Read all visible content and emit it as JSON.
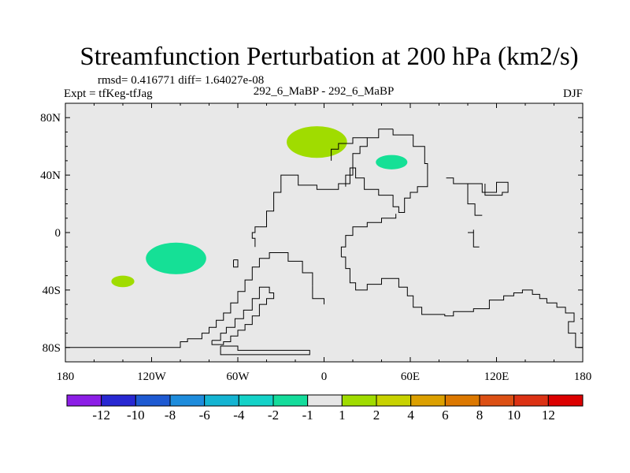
{
  "chart_data": {
    "type": "contour-map",
    "title": "Streamfunction Perturbation at 200 hPa (km2/s)",
    "stats_line": "rmsd= 0.416771 diff= 1.64027e-08",
    "left_label": "Expt = tfKeg-tfJag",
    "center_label": "292_6_MaBP - 292_6_MaBP",
    "right_label": "DJF",
    "xlim": [
      -180,
      180
    ],
    "ylim": [
      -90,
      90
    ],
    "x_ticks": [
      {
        "value": -180,
        "label": "180"
      },
      {
        "value": -120,
        "label": "120W"
      },
      {
        "value": -60,
        "label": "60W"
      },
      {
        "value": 0,
        "label": "0"
      },
      {
        "value": 60,
        "label": "60E"
      },
      {
        "value": 120,
        "label": "120E"
      },
      {
        "value": 180,
        "label": "180"
      }
    ],
    "y_ticks": [
      {
        "value": 80,
        "label": "80N"
      },
      {
        "value": 40,
        "label": "40N"
      },
      {
        "value": 0,
        "label": "0"
      },
      {
        "value": -40,
        "label": "40S"
      },
      {
        "value": -80,
        "label": "80S"
      }
    ],
    "background_color": "#e8e8e8",
    "contour_regions": [
      {
        "level": 2,
        "color": "#a0dc00",
        "center": [
          -5,
          63
        ],
        "radius": [
          21,
          11
        ]
      },
      {
        "level": -1,
        "color": "#15e096",
        "center": [
          47,
          49
        ],
        "radius": [
          11,
          5
        ]
      },
      {
        "level": -1,
        "color": "#15e096",
        "center": [
          -103,
          -18
        ],
        "radius": [
          21,
          11
        ]
      },
      {
        "level": 2,
        "color": "#a0dc00",
        "center": [
          -140,
          -34
        ],
        "radius": [
          8,
          4
        ]
      }
    ],
    "colorbar": {
      "labels": [
        "-12",
        "-10",
        "-8",
        "-6",
        "-4",
        "-2",
        "-1",
        "1",
        "2",
        "4",
        "6",
        "8",
        "10",
        "12"
      ],
      "colors": [
        "#8c1ee6",
        "#2828d2",
        "#1e5ad2",
        "#1e8cdc",
        "#14b4d2",
        "#14d2c8",
        "#14dc9b",
        "#e6e6e6",
        "#a0dc00",
        "#c8d200",
        "#dca000",
        "#dc7800",
        "#dc5014",
        "#dc3214",
        "#dc0000"
      ]
    },
    "coastlines": [
      [
        [
          -180,
          -80
        ],
        [
          -100,
          -80
        ],
        [
          -100,
          -76
        ],
        [
          -95,
          -76
        ],
        [
          -95,
          -74
        ],
        [
          -85,
          -74
        ],
        [
          -85,
          -70
        ],
        [
          -80,
          -70
        ],
        [
          -80,
          -66
        ],
        [
          -75,
          -66
        ],
        [
          -75,
          -61
        ],
        [
          -70,
          -61
        ],
        [
          -70,
          -56
        ],
        [
          -65,
          -56
        ],
        [
          -65,
          -49
        ],
        [
          -60,
          -49
        ],
        [
          -60,
          -41
        ],
        [
          -55,
          -41
        ],
        [
          -55,
          -33
        ],
        [
          -50,
          -33
        ],
        [
          -50,
          -24
        ],
        [
          -45,
          -24
        ],
        [
          -45,
          -18
        ],
        [
          -38,
          -18
        ],
        [
          -38,
          -14
        ],
        [
          -25,
          -14
        ],
        [
          -25,
          -20
        ],
        [
          -15,
          -20
        ],
        [
          -15,
          -28
        ],
        [
          -8,
          -28
        ],
        [
          -8,
          -37
        ]
      ],
      [
        [
          -78,
          -75
        ],
        [
          -72,
          -75
        ],
        [
          -72,
          -70
        ],
        [
          -68,
          -70
        ],
        [
          -68,
          -66
        ],
        [
          -62,
          -66
        ],
        [
          -62,
          -60
        ],
        [
          -56,
          -60
        ],
        [
          -56,
          -54
        ],
        [
          -50,
          -54
        ],
        [
          -50,
          -46
        ],
        [
          -45,
          -46
        ],
        [
          -45,
          -38
        ],
        [
          -38,
          -38
        ],
        [
          -38,
          -42
        ],
        [
          -35,
          -42
        ],
        [
          -35,
          -46
        ],
        [
          -40,
          -46
        ],
        [
          -40,
          -50
        ],
        [
          -45,
          -50
        ],
        [
          -45,
          -58
        ],
        [
          -50,
          -58
        ],
        [
          -50,
          -64
        ],
        [
          -55,
          -64
        ],
        [
          -55,
          -68
        ],
        [
          -60,
          -68
        ],
        [
          -60,
          -72
        ],
        [
          -65,
          -72
        ],
        [
          -65,
          -76
        ],
        [
          -70,
          -76
        ],
        [
          -70,
          -78
        ],
        [
          -76,
          -78
        ],
        [
          -78,
          -78
        ],
        [
          -78,
          -75
        ]
      ],
      [
        [
          -72,
          -79
        ],
        [
          -60,
          -79
        ],
        [
          -60,
          -82
        ],
        [
          -10,
          -82
        ],
        [
          -10,
          -85
        ],
        [
          -72,
          -85
        ],
        [
          -72,
          -79
        ]
      ],
      [
        [
          -45,
          4
        ],
        [
          -40,
          4
        ],
        [
          -40,
          15
        ],
        [
          -35,
          15
        ],
        [
          -35,
          28
        ],
        [
          -30,
          28
        ],
        [
          -30,
          40
        ],
        [
          -18,
          40
        ],
        [
          -18,
          33
        ],
        [
          -5,
          33
        ],
        [
          -5,
          30
        ],
        [
          10,
          30
        ],
        [
          10,
          34
        ],
        [
          18,
          34
        ],
        [
          18,
          45
        ],
        [
          22,
          45
        ],
        [
          22,
          38
        ],
        [
          28,
          38
        ],
        [
          28,
          30
        ],
        [
          38,
          30
        ],
        [
          38,
          26
        ],
        [
          48,
          26
        ],
        [
          48,
          18
        ],
        [
          52,
          18
        ],
        [
          52,
          14
        ],
        [
          56,
          14
        ],
        [
          56,
          24
        ],
        [
          60,
          24
        ],
        [
          60,
          28
        ],
        [
          65,
          28
        ],
        [
          65,
          32
        ],
        [
          72,
          32
        ],
        [
          72,
          48
        ],
        [
          70,
          48
        ],
        [
          70,
          60
        ],
        [
          62,
          60
        ],
        [
          62,
          68
        ],
        [
          48,
          68
        ],
        [
          48,
          72
        ]
      ],
      [
        [
          -45,
          4
        ],
        [
          -48,
          4
        ],
        [
          -48,
          0
        ],
        [
          -50,
          0
        ],
        [
          -50,
          -4
        ],
        [
          -48,
          -4
        ],
        [
          -48,
          -10
        ]
      ],
      [
        [
          -8,
          -37
        ],
        [
          -8,
          -46
        ],
        [
          0,
          -46
        ],
        [
          0,
          -50
        ]
      ],
      [
        [
          48,
          72
        ],
        [
          38,
          72
        ],
        [
          38,
          66
        ],
        [
          30,
          66
        ],
        [
          30,
          60
        ],
        [
          25,
          60
        ],
        [
          25,
          55
        ],
        [
          20,
          55
        ],
        [
          20,
          40
        ],
        [
          15,
          40
        ],
        [
          15,
          32
        ]
      ],
      [
        [
          30,
          66
        ],
        [
          20,
          66
        ],
        [
          20,
          62
        ],
        [
          10,
          62
        ],
        [
          10,
          58
        ],
        [
          5,
          58
        ],
        [
          5,
          50
        ]
      ],
      [
        [
          12,
          -17
        ],
        [
          12,
          -10
        ],
        [
          15,
          -10
        ],
        [
          15,
          -2
        ],
        [
          20,
          -2
        ],
        [
          20,
          4
        ],
        [
          30,
          4
        ],
        [
          30,
          7
        ],
        [
          40,
          7
        ],
        [
          40,
          10
        ],
        [
          50,
          10
        ],
        [
          50,
          13
        ]
      ],
      [
        [
          12,
          -17
        ],
        [
          15,
          -17
        ],
        [
          15,
          -25
        ],
        [
          18,
          -25
        ],
        [
          18,
          -35
        ],
        [
          22,
          -35
        ],
        [
          22,
          -40
        ],
        [
          30,
          -40
        ],
        [
          30,
          -36
        ],
        [
          40,
          -36
        ],
        [
          40,
          -32
        ],
        [
          52,
          -32
        ],
        [
          52,
          -38
        ],
        [
          58,
          -38
        ],
        [
          58,
          -44
        ],
        [
          62,
          -44
        ],
        [
          62,
          -52
        ],
        [
          68,
          -52
        ],
        [
          68,
          -57
        ],
        [
          84,
          -57
        ],
        [
          84,
          -58
        ],
        [
          90,
          -58
        ],
        [
          90,
          -55
        ],
        [
          104,
          -55
        ],
        [
          104,
          -53
        ],
        [
          115,
          -53
        ],
        [
          115,
          -47
        ],
        [
          125,
          -47
        ],
        [
          125,
          -44
        ],
        [
          132,
          -44
        ],
        [
          132,
          -42
        ],
        [
          138,
          -42
        ],
        [
          138,
          -40
        ],
        [
          145,
          -40
        ],
        [
          145,
          -43
        ],
        [
          150,
          -43
        ],
        [
          150,
          -46
        ],
        [
          155,
          -46
        ],
        [
          155,
          -49
        ],
        [
          162,
          -49
        ],
        [
          162,
          -52
        ],
        [
          168,
          -52
        ],
        [
          168,
          -56
        ],
        [
          174,
          -56
        ],
        [
          174,
          -62
        ],
        [
          170,
          -62
        ],
        [
          170,
          -70
        ],
        [
          175,
          -70
        ],
        [
          175,
          -80
        ],
        [
          180,
          -80
        ]
      ],
      [
        [
          -63,
          -19
        ],
        [
          -60,
          -19
        ],
        [
          -60,
          -24
        ],
        [
          -63,
          -24
        ],
        [
          -63,
          -19
        ]
      ],
      [
        [
          85,
          38
        ],
        [
          90,
          38
        ],
        [
          90,
          34
        ],
        [
          100,
          34
        ],
        [
          100,
          20
        ],
        [
          105,
          20
        ],
        [
          105,
          12
        ],
        [
          110,
          12
        ]
      ],
      [
        [
          100,
          34
        ],
        [
          110,
          34
        ],
        [
          110,
          28
        ],
        [
          120,
          28
        ],
        [
          120,
          35
        ],
        [
          128,
          35
        ],
        [
          128,
          28
        ],
        [
          124,
          28
        ],
        [
          124,
          26
        ],
        [
          112,
          26
        ],
        [
          112,
          34
        ]
      ],
      [
        [
          100,
          0
        ],
        [
          104,
          0
        ],
        [
          104,
          -10
        ],
        [
          108,
          -10
        ]
      ],
      [
        [
          104,
          0
        ],
        [
          104,
          2
        ]
      ]
    ]
  }
}
